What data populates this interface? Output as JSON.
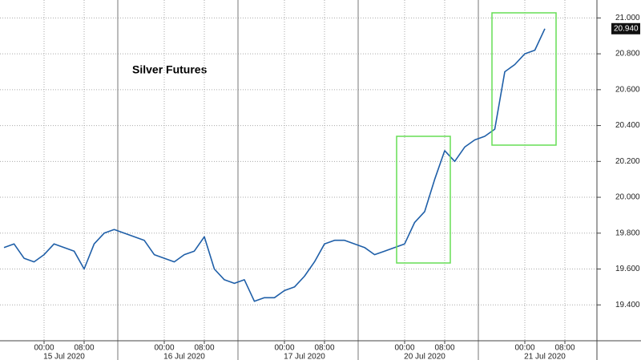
{
  "chart_data": {
    "type": "line",
    "title": "Silver Futures",
    "categories": [
      null,
      null,
      null,
      null,
      "00:00",
      null,
      null,
      null,
      "08:00",
      null,
      null,
      null,
      null,
      null,
      null,
      null,
      "00:00",
      null,
      null,
      null,
      "08:00",
      null,
      null,
      null,
      null,
      null,
      null,
      null,
      "00:00",
      null,
      null,
      null,
      "08:00",
      null,
      null,
      null,
      null,
      null,
      null,
      null,
      "00:00",
      null,
      null,
      null,
      "08:00",
      null,
      null,
      null,
      null,
      null,
      null,
      null,
      "00:00",
      null,
      null,
      null,
      "08:00",
      null,
      null,
      null
    ],
    "dates": [
      "15 Jul 2020",
      "16 Jul 2020",
      "17 Jul 2020",
      "20 Jul 2020",
      "21 Jul 2020"
    ],
    "series": [
      {
        "name": "Silver Futures",
        "color": "#1f5fa8",
        "values": [
          19.72,
          19.74,
          19.66,
          19.64,
          19.68,
          19.74,
          19.72,
          19.7,
          19.6,
          19.74,
          19.8,
          19.82,
          19.8,
          19.78,
          19.76,
          19.68,
          19.66,
          19.64,
          19.68,
          19.7,
          19.78,
          19.6,
          19.54,
          19.52,
          19.54,
          19.42,
          19.44,
          19.44,
          19.48,
          19.5,
          19.56,
          19.64,
          19.74,
          19.76,
          19.76,
          19.74,
          19.72,
          19.68,
          19.7,
          19.72,
          19.74,
          19.86,
          19.92,
          20.1,
          20.26,
          20.2,
          20.28,
          20.32,
          20.34,
          20.38,
          20.7,
          20.74,
          20.8,
          20.82,
          20.94,
          null,
          null,
          null,
          null,
          null
        ]
      }
    ],
    "last_price": {
      "value": 20.94,
      "label": "20.940"
    },
    "ylim": [
      19.2,
      21.1
    ],
    "yticks": [
      {
        "value": 19.4,
        "label": "19.400"
      },
      {
        "value": 19.6,
        "label": "19.600"
      },
      {
        "value": 19.8,
        "label": "19.800"
      },
      {
        "value": 20.0,
        "label": "20.000"
      },
      {
        "value": 20.2,
        "label": "20.200"
      },
      {
        "value": 20.4,
        "label": "20.400"
      },
      {
        "value": 20.6,
        "label": "20.600"
      },
      {
        "value": 20.8,
        "label": "20.800"
      },
      {
        "value": 21.0,
        "label": "21.000"
      }
    ],
    "grid": true
  }
}
